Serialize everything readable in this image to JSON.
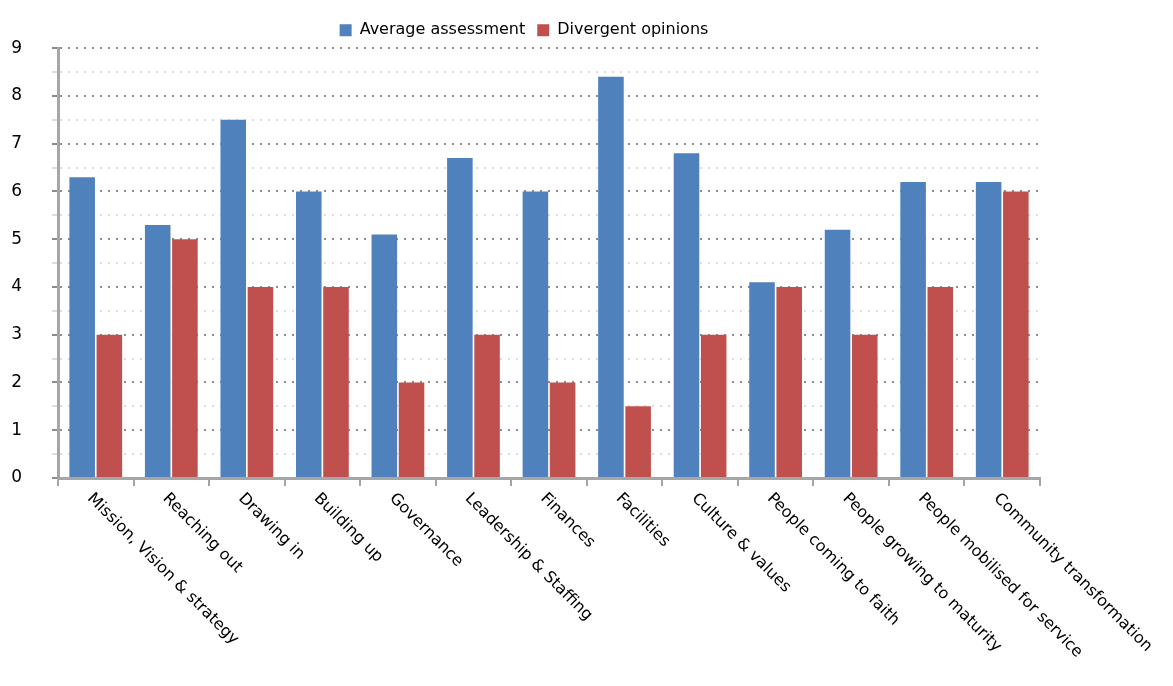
{
  "chart_data": {
    "type": "bar",
    "categories": [
      "Mission, Vision & strategy",
      "Reaching out",
      "Drawing in",
      "Building up",
      "Governance",
      "Leadership & Staffing",
      "Finances",
      "Facilities",
      "Culture & values",
      "People coming to faith",
      "People growing to maturity",
      "People mobilised for service",
      "Community transformation"
    ],
    "series": [
      {
        "name": "Average assessment",
        "color": "#4f81bd",
        "values": [
          6.3,
          5.3,
          7.5,
          6,
          5.1,
          6.7,
          6,
          8.4,
          6.8,
          4.1,
          5.2,
          6.2,
          6.2
        ]
      },
      {
        "name": "Divergent opinions",
        "color": "#c0504d",
        "values": [
          3,
          5,
          4,
          4,
          2,
          3,
          2,
          1.5,
          3,
          4,
          3,
          4,
          6
        ]
      }
    ],
    "ylim": [
      0,
      9
    ],
    "yticks": [
      0,
      {
        "value": 0.5,
        "label": null
      },
      1,
      {
        "value": 1.5,
        "label": null
      },
      2,
      {
        "value": 2.5,
        "label": null
      },
      3,
      {
        "value": 3.5,
        "label": null
      },
      4,
      {
        "value": 4.5,
        "label": null
      },
      5,
      {
        "value": 5.5,
        "label": null
      },
      6,
      {
        "value": 6.5,
        "label": null
      },
      7,
      {
        "value": 7.5,
        "label": null
      },
      8,
      {
        "value": 8.5,
        "label": null
      },
      9
    ],
    "grid": "y",
    "legend": "top"
  }
}
